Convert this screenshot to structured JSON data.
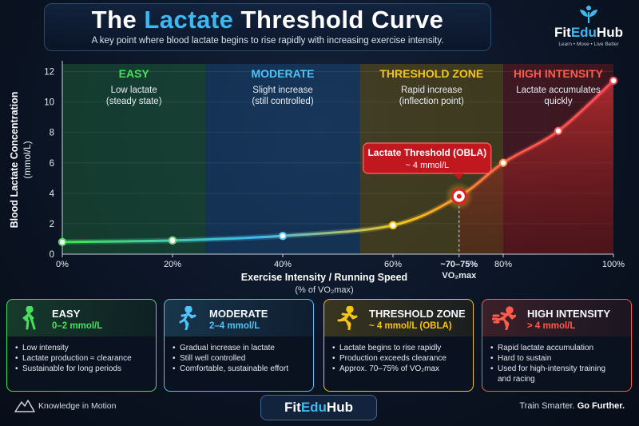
{
  "header": {
    "title_part1": "The ",
    "title_accent": "Lactate",
    "title_part2": " Threshold Curve",
    "subtitle": "A key point where blood lactate begins to rise rapidly with increasing exercise intensity."
  },
  "brand": {
    "name_part1": "Fit",
    "name_accent": "Edu",
    "name_part2": "Hub",
    "tagline": "Learn • Move • Live Better",
    "logo_icon": "sprout-person-icon"
  },
  "chart_data": {
    "type": "line",
    "ylabel_line1": "Blood Lactate Concentration",
    "ylabel_line2": "(mmol/L)",
    "xlabel": "Exercise Intensity / Running Speed",
    "xlabel_sub": "(% of VO₂max)",
    "ylim": [
      0,
      12.5
    ],
    "xlim": [
      0,
      100
    ],
    "y_ticks": [
      "0",
      "2",
      "4",
      "6",
      "8",
      "10",
      "12"
    ],
    "x_ticks": [
      {
        "value": 0,
        "label": "0%"
      },
      {
        "value": 20,
        "label": "20%"
      },
      {
        "value": 40,
        "label": "40%"
      },
      {
        "value": 60,
        "label": "60%"
      },
      {
        "value": 72,
        "label": "~70–75%",
        "label2": "VO₂max"
      },
      {
        "value": 80,
        "label": "80%"
      },
      {
        "value": 100,
        "label": "100%"
      }
    ],
    "series": [
      {
        "x": [
          0,
          20,
          40,
          60,
          72,
          80,
          90,
          100
        ],
        "y": [
          0.8,
          0.9,
          1.2,
          1.9,
          3.8,
          6.0,
          8.1,
          11.4
        ]
      }
    ],
    "curve_colors": [
      "#46e05a",
      "#3fb8f0",
      "#f5c518",
      "#ff5a4a",
      "#ff4a5a"
    ],
    "zones": [
      {
        "name": "EASY",
        "desc1": "Low lactate",
        "desc2": "(steady state)",
        "x_start": 0,
        "x_end": 26,
        "color": "#1f6b3a",
        "label_color": "#46e05a"
      },
      {
        "name": "MODERATE",
        "desc1": "Slight increase",
        "desc2": "(still controlled)",
        "x_start": 26,
        "x_end": 54,
        "color": "#1a4f80",
        "label_color": "#4fc3f7"
      },
      {
        "name": "THRESHOLD ZONE",
        "desc1": "Rapid increase",
        "desc2": "(inflection point)",
        "x_start": 54,
        "x_end": 80,
        "color": "#7a6310",
        "label_color": "#f5c518"
      },
      {
        "name": "HIGH INTENSITY",
        "desc1": "Lactate accumulates",
        "desc2": "quickly",
        "x_start": 80,
        "x_end": 100,
        "color": "#7a1a1a",
        "label_color": "#ff5a4a"
      }
    ],
    "threshold": {
      "x": 72,
      "y": 3.8,
      "callout_title": "Lactate Threshold (OBLA)",
      "callout_value": "~ 4 mmol/L"
    }
  },
  "cards": [
    {
      "title": "EASY",
      "range": "0–2 mmol/L",
      "color": "#46e05a",
      "icon": "walking-person-icon",
      "bullets": [
        "Low intensity",
        "Lactate production ≈ clearance",
        "Sustainable for long periods"
      ]
    },
    {
      "title": "MODERATE",
      "range": "2–4 mmol/L",
      "color": "#4fc3f7",
      "icon": "jogging-person-icon",
      "bullets": [
        "Gradual increase in lactate",
        "Still well controlled",
        "Comfortable, sustainable effort"
      ]
    },
    {
      "title": "THRESHOLD ZONE",
      "range": "~ 4 mmol/L (OBLA)",
      "color": "#f5c518",
      "icon": "running-person-icon",
      "bullets": [
        "Lactate begins to rise rapidly",
        "Production exceeds clearance",
        "Approx. 70–75% of VO₂max"
      ]
    },
    {
      "title": "HIGH INTENSITY",
      "range": "> 4 mmol/L",
      "color": "#ff5a4a",
      "icon": "sprinting-person-icon",
      "bullets": [
        "Rapid lactate accumulation",
        "Hard to sustain",
        "Used for high-intensity training",
        "and racing"
      ]
    }
  ],
  "footer": {
    "left_text": "Knowledge in Motion",
    "left_icon": "mountain-icon",
    "center_part1": "Fit",
    "center_accent": "Edu",
    "center_part2": "Hub",
    "right_text": "Train Smarter. ",
    "right_bold": "Go Further."
  }
}
